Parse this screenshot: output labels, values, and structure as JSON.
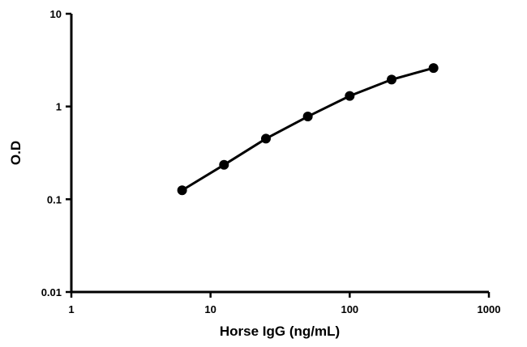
{
  "chart_data": {
    "type": "line",
    "xlabel": "Horse IgG (ng/mL)",
    "ylabel": "O.D",
    "x": [
      6.25,
      12.5,
      25,
      50,
      100,
      200,
      400
    ],
    "values": [
      0.125,
      0.235,
      0.45,
      0.78,
      1.3,
      1.95,
      2.6
    ],
    "color": "#000000",
    "xscale": "log",
    "yscale": "log",
    "xlim": [
      1,
      1000
    ],
    "ylim": [
      0.01,
      10
    ],
    "xticks": [
      1,
      10,
      100,
      1000
    ],
    "yticks": [
      0.01,
      0.1,
      1,
      10
    ],
    "grid": false
  }
}
